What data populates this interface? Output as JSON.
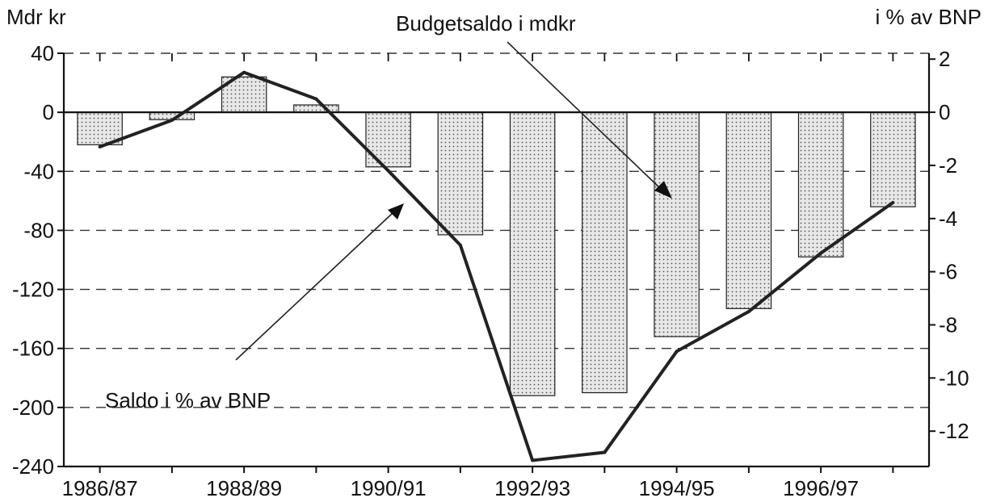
{
  "chart_data": {
    "type": "bar",
    "left_unit_label": "Mdr kr",
    "right_unit_label": "i % av BNP",
    "categories": [
      "1986/87",
      "1987/88",
      "1988/89",
      "1989/90",
      "1990/91",
      "1991/92",
      "1992/93",
      "1993/94",
      "1994/95",
      "1995/96",
      "1996/97",
      "1997/98"
    ],
    "x_tick_labels": [
      "1986/87",
      "1988/89",
      "1990/91",
      "1992/93",
      "1994/95",
      "1996/97"
    ],
    "series": [
      {
        "name": "Budgetsaldo i mdkr",
        "type": "bar",
        "axis": "left",
        "values": [
          -22,
          -5,
          24,
          5,
          -37,
          -83,
          -192,
          -190,
          -152,
          -133,
          -98,
          -64
        ]
      },
      {
        "name": "Saldo i % av BNP",
        "type": "line",
        "axis": "right",
        "values": [
          -1.3,
          -0.3,
          1.5,
          0.5,
          -2.2,
          -5.0,
          -13.1,
          -12.8,
          -9.0,
          -7.5,
          -5.3,
          -3.4
        ]
      }
    ],
    "ylim_left": [
      -240,
      40
    ],
    "yticks_left": [
      "40",
      "0",
      "-40",
      "-80",
      "-120",
      "-160",
      "-200",
      "-240"
    ],
    "ylim_right": [
      -13.33,
      2.22
    ],
    "yticks_right": [
      "2",
      "0",
      "-2",
      "-4",
      "-6",
      "-8",
      "-10",
      "-12"
    ],
    "grid": "dashed horizontal",
    "annotations": [
      {
        "text": "Budgetsaldo i mdkr",
        "points_to": "bar series"
      },
      {
        "text": "Saldo i % av BNP",
        "points_to": "line series"
      }
    ],
    "colors": {
      "bar_fill": "#e6e6e6",
      "bar_dots": "#555555",
      "line": "#222222",
      "grid": "#333333"
    }
  }
}
